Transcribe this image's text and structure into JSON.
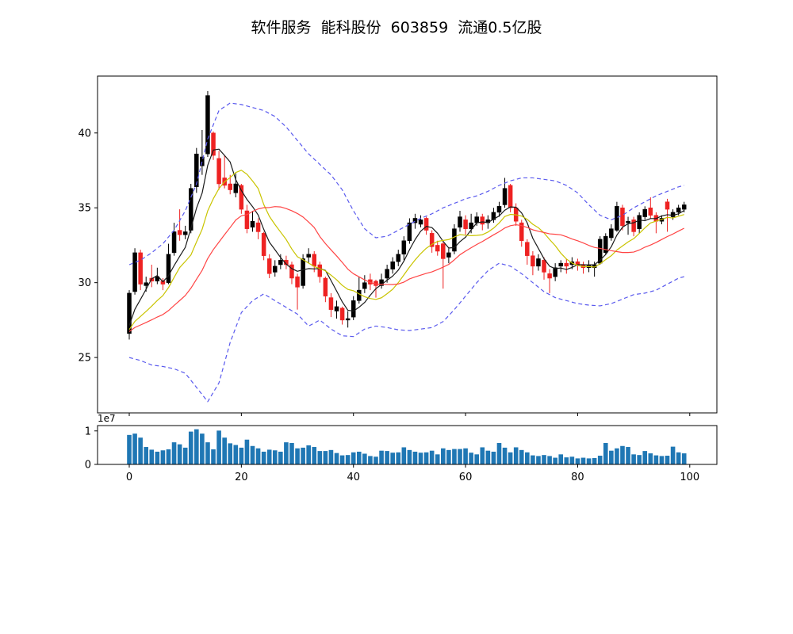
{
  "title": "软件服务  能科股份  603859  流通0.5亿股",
  "chart_data": [
    {
      "type": "candlestick",
      "name": "price-panel",
      "up_color": "#000000",
      "down_color": "#ee2222",
      "band_color": "#5a5aee",
      "xticks": [
        0,
        20,
        40,
        60,
        80,
        100
      ],
      "yticks": [
        25,
        30,
        35,
        40
      ],
      "xlim": [
        -5.66,
        104.84
      ],
      "ylim": [
        21.3,
        43.8
      ],
      "moving_averages": [
        {
          "name": "MA5",
          "window": 5,
          "color": "#1a1a1a"
        },
        {
          "name": "MA10",
          "window": 10,
          "color": "#c9c400"
        },
        {
          "name": "MA20",
          "window": 20,
          "color": "#ff4444"
        }
      ],
      "ohlc": [
        [
          26.6,
          29.5,
          26.2,
          29.3
        ],
        [
          29.4,
          32.3,
          29.2,
          32.0
        ],
        [
          32.0,
          32.2,
          29.5,
          29.9
        ],
        [
          29.8,
          30.4,
          29.4,
          30.0
        ],
        [
          30.3,
          31.2,
          29.7,
          30.1
        ],
        [
          30.1,
          31.0,
          29.9,
          30.4
        ],
        [
          30.1,
          30.3,
          29.5,
          29.9
        ],
        [
          30.0,
          32.6,
          29.9,
          31.9
        ],
        [
          32.0,
          34.0,
          31.8,
          33.4
        ],
        [
          33.5,
          34.9,
          32.8,
          33.2
        ],
        [
          33.2,
          33.8,
          32.9,
          33.4
        ],
        [
          33.5,
          36.6,
          33.3,
          36.3
        ],
        [
          36.4,
          39.0,
          36.0,
          38.6
        ],
        [
          37.8,
          40.2,
          37.2,
          38.4
        ],
        [
          38.6,
          42.8,
          38.4,
          42.5
        ],
        [
          40.0,
          40.1,
          38.2,
          38.5
        ],
        [
          38.3,
          38.8,
          36.2,
          36.6
        ],
        [
          37.0,
          38.5,
          36.3,
          36.5
        ],
        [
          36.6,
          37.2,
          35.9,
          36.2
        ],
        [
          36.0,
          37.3,
          35.7,
          36.6
        ],
        [
          36.5,
          36.6,
          34.6,
          34.9
        ],
        [
          34.8,
          35.2,
          33.3,
          33.6
        ],
        [
          33.7,
          34.8,
          33.4,
          34.1
        ],
        [
          34.0,
          34.3,
          32.9,
          33.4
        ],
        [
          33.3,
          33.4,
          31.5,
          31.8
        ],
        [
          31.6,
          31.9,
          30.3,
          30.6
        ],
        [
          30.7,
          31.5,
          30.4,
          31.1
        ],
        [
          31.2,
          31.9,
          30.9,
          31.5
        ],
        [
          31.5,
          31.8,
          30.9,
          31.2
        ],
        [
          31.2,
          31.4,
          29.9,
          30.3
        ],
        [
          30.4,
          30.6,
          28.2,
          29.7
        ],
        [
          29.8,
          31.9,
          29.6,
          31.6
        ],
        [
          31.7,
          32.3,
          31.3,
          31.9
        ],
        [
          31.9,
          32.1,
          30.7,
          31.1
        ],
        [
          31.2,
          31.4,
          30.0,
          30.4
        ],
        [
          30.3,
          30.4,
          28.7,
          29.1
        ],
        [
          29.0,
          29.3,
          27.7,
          28.2
        ],
        [
          28.1,
          28.8,
          27.6,
          28.4
        ],
        [
          28.3,
          28.4,
          27.2,
          27.5
        ],
        [
          27.5,
          28.1,
          27.0,
          27.6
        ],
        [
          27.7,
          29.1,
          27.5,
          28.8
        ],
        [
          28.8,
          30.4,
          28.6,
          29.5
        ],
        [
          29.6,
          30.5,
          29.3,
          30.0
        ],
        [
          30.2,
          30.6,
          29.5,
          29.9
        ],
        [
          30.1,
          30.2,
          29.0,
          29.8
        ],
        [
          29.8,
          30.6,
          29.6,
          30.2
        ],
        [
          30.3,
          31.2,
          30.0,
          30.9
        ],
        [
          30.9,
          31.7,
          30.6,
          31.4
        ],
        [
          31.4,
          32.2,
          31.1,
          31.9
        ],
        [
          31.9,
          33.1,
          31.5,
          32.8
        ],
        [
          32.8,
          34.3,
          32.6,
          34.0
        ],
        [
          34.0,
          34.6,
          33.6,
          34.3
        ],
        [
          33.9,
          34.5,
          33.7,
          34.2
        ],
        [
          34.3,
          34.4,
          33.2,
          33.5
        ],
        [
          33.3,
          33.5,
          32.0,
          32.4
        ],
        [
          32.5,
          32.8,
          31.8,
          32.1
        ],
        [
          32.6,
          32.7,
          29.6,
          31.6
        ],
        [
          31.7,
          32.3,
          31.3,
          32.0
        ],
        [
          32.1,
          33.9,
          31.9,
          33.6
        ],
        [
          33.7,
          34.8,
          33.4,
          34.4
        ],
        [
          34.2,
          34.5,
          33.2,
          33.6
        ],
        [
          33.6,
          34.6,
          33.3,
          34.0
        ],
        [
          34.0,
          34.7,
          33.8,
          34.4
        ],
        [
          34.4,
          34.6,
          33.5,
          33.9
        ],
        [
          34.0,
          34.5,
          33.6,
          34.2
        ],
        [
          34.2,
          35.0,
          34.0,
          34.7
        ],
        [
          34.7,
          35.4,
          34.4,
          35.1
        ],
        [
          35.2,
          37.0,
          35.0,
          36.3
        ],
        [
          36.5,
          36.6,
          34.7,
          35.0
        ],
        [
          35.0,
          35.3,
          33.8,
          34.1
        ],
        [
          34.0,
          34.2,
          32.4,
          32.8
        ],
        [
          32.7,
          32.9,
          31.2,
          31.8
        ],
        [
          31.8,
          32.1,
          30.5,
          31.1
        ],
        [
          31.1,
          31.9,
          30.8,
          31.6
        ],
        [
          31.5,
          31.7,
          30.2,
          30.7
        ],
        [
          30.6,
          30.9,
          29.3,
          30.3
        ],
        [
          30.4,
          31.3,
          30.1,
          31.0
        ],
        [
          31.1,
          31.5,
          30.7,
          31.3
        ],
        [
          31.3,
          31.6,
          30.6,
          31.1
        ],
        [
          31.2,
          31.7,
          30.9,
          31.4
        ],
        [
          31.4,
          31.6,
          30.8,
          31.2
        ],
        [
          31.2,
          31.4,
          30.6,
          31.0
        ],
        [
          31.0,
          31.5,
          30.7,
          31.2
        ],
        [
          31.0,
          31.4,
          30.4,
          31.2
        ],
        [
          31.3,
          33.1,
          31.2,
          32.9
        ],
        [
          32.0,
          33.3,
          31.9,
          33.1
        ],
        [
          33.0,
          33.9,
          32.8,
          33.6
        ],
        [
          33.5,
          35.4,
          33.4,
          35.1
        ],
        [
          35.0,
          35.2,
          33.5,
          33.8
        ],
        [
          34.0,
          34.4,
          33.2,
          34.1
        ],
        [
          34.2,
          34.4,
          33.1,
          33.4
        ],
        [
          33.6,
          34.7,
          33.3,
          34.5
        ],
        [
          34.4,
          35.1,
          34.2,
          34.9
        ],
        [
          35.0,
          35.7,
          34.3,
          34.5
        ],
        [
          34.5,
          34.7,
          33.3,
          34.1
        ],
        [
          34.1,
          34.5,
          33.9,
          34.3
        ],
        [
          35.4,
          35.6,
          33.4,
          34.9
        ],
        [
          34.4,
          34.9,
          34.2,
          34.7
        ],
        [
          34.7,
          35.2,
          34.5,
          35.0
        ],
        [
          34.9,
          35.4,
          34.7,
          35.2
        ]
      ],
      "bands": {
        "style": "dashed",
        "upper": {
          "x": [
            0,
            2,
            4,
            6,
            8,
            10,
            12,
            14,
            16,
            18,
            20,
            22,
            24,
            26,
            28,
            30,
            32,
            34,
            36,
            38,
            40,
            42,
            44,
            46,
            48,
            50,
            52,
            54,
            56,
            58,
            60,
            62,
            64,
            66,
            68,
            70,
            72,
            74,
            76,
            78,
            80,
            82,
            84,
            86,
            88,
            90,
            92,
            94,
            96,
            98,
            99
          ],
          "y": [
            31.2,
            31.5,
            32.0,
            32.6,
            33.5,
            34.8,
            36.6,
            39.6,
            41.5,
            42.0,
            41.9,
            41.7,
            41.5,
            41.1,
            40.4,
            39.5,
            38.6,
            37.9,
            37.2,
            36.2,
            34.8,
            33.6,
            33.0,
            33.1,
            33.5,
            33.9,
            34.3,
            34.6,
            35.0,
            35.3,
            35.6,
            35.8,
            36.1,
            36.5,
            36.8,
            37.0,
            37.0,
            36.9,
            36.8,
            36.5,
            36.0,
            35.2,
            34.5,
            34.2,
            34.5,
            35.0,
            35.4,
            35.8,
            36.1,
            36.4,
            36.5
          ]
        },
        "lower": {
          "x": [
            0,
            2,
            4,
            6,
            8,
            10,
            12,
            14,
            16,
            18,
            20,
            22,
            24,
            26,
            28,
            30,
            32,
            34,
            36,
            38,
            40,
            42,
            44,
            46,
            48,
            50,
            52,
            54,
            56,
            58,
            60,
            62,
            64,
            66,
            68,
            70,
            72,
            74,
            76,
            78,
            80,
            82,
            84,
            86,
            88,
            90,
            92,
            94,
            96,
            98,
            99
          ],
          "y": [
            25.0,
            24.8,
            24.5,
            24.4,
            24.25,
            23.95,
            23.0,
            22.05,
            23.3,
            26.0,
            28.0,
            28.8,
            29.25,
            28.8,
            28.35,
            27.9,
            27.1,
            27.5,
            26.9,
            26.45,
            26.4,
            26.9,
            27.1,
            27.0,
            26.85,
            26.8,
            26.9,
            27.0,
            27.4,
            28.2,
            29.1,
            30.0,
            30.8,
            31.3,
            31.1,
            30.6,
            30.0,
            29.4,
            29.0,
            28.8,
            28.6,
            28.5,
            28.45,
            28.6,
            28.9,
            29.2,
            29.3,
            29.5,
            29.9,
            30.3,
            30.4
          ]
        }
      }
    },
    {
      "type": "bar",
      "name": "volume-panel",
      "unit_label": "1e7",
      "bar_color": "#1f77b4",
      "yticks": [
        0,
        1
      ],
      "ylim": [
        0,
        1.16
      ],
      "xticks": [
        0,
        20,
        40,
        60,
        80,
        100
      ],
      "values": [
        0.88,
        0.92,
        0.8,
        0.52,
        0.44,
        0.38,
        0.42,
        0.45,
        0.66,
        0.6,
        0.5,
        0.98,
        1.05,
        0.92,
        0.66,
        0.45,
        1.01,
        0.8,
        0.63,
        0.58,
        0.5,
        0.74,
        0.55,
        0.48,
        0.38,
        0.44,
        0.42,
        0.38,
        0.66,
        0.64,
        0.48,
        0.5,
        0.57,
        0.52,
        0.4,
        0.4,
        0.43,
        0.34,
        0.27,
        0.28,
        0.36,
        0.38,
        0.32,
        0.25,
        0.23,
        0.41,
        0.4,
        0.35,
        0.36,
        0.51,
        0.43,
        0.38,
        0.35,
        0.36,
        0.41,
        0.3,
        0.48,
        0.43,
        0.46,
        0.46,
        0.48,
        0.35,
        0.3,
        0.51,
        0.41,
        0.38,
        0.64,
        0.5,
        0.36,
        0.51,
        0.43,
        0.36,
        0.27,
        0.25,
        0.28,
        0.25,
        0.2,
        0.3,
        0.21,
        0.23,
        0.18,
        0.2,
        0.18,
        0.19,
        0.26,
        0.64,
        0.41,
        0.48,
        0.55,
        0.52,
        0.3,
        0.28,
        0.4,
        0.33,
        0.27,
        0.25,
        0.26,
        0.53,
        0.36,
        0.33
      ]
    }
  ]
}
